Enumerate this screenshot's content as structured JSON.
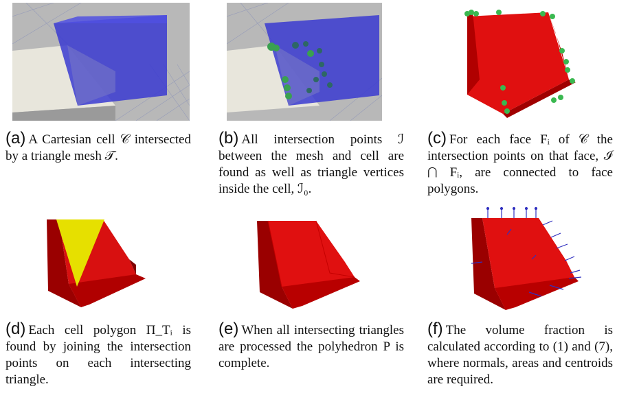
{
  "panels": [
    {
      "label": "(a)",
      "text": "A Cartesian cell 𝒞 intersected by a triangle mesh 𝒯."
    },
    {
      "label": "(b)",
      "text": "All intersection points ℐ between the mesh and cell are found as well as triangle vertices inside the cell, ℐ₀."
    },
    {
      "label": "(c)",
      "text": "For each face Fᵢ of 𝒞 the intersection points on that face, ℐ ⋂ Fᵢ, are connected to face polygons."
    },
    {
      "label": "(d)",
      "text": "Each cell polygon Π_Tᵢ is found by joining the intersection points on each intersecting triangle."
    },
    {
      "label": "(e)",
      "text": "When all intersecting triangles are processed the polyhedron P is complete."
    },
    {
      "label": "(f)",
      "text": "The volume fraction is calculated according to (1) and (7), where normals, areas and centroids are required."
    }
  ],
  "colors": {
    "cell_blue": "#4a4ac8",
    "poly_red": "#e01010",
    "dark_red": "#8a0000",
    "tri_yellow": "#e8e000",
    "point_green": "#2ea84a",
    "mesh_grey": "#c8c8c8"
  }
}
